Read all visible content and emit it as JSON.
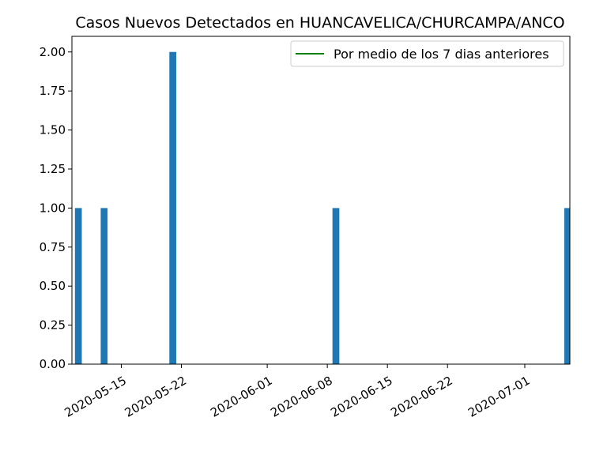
{
  "chart_data": {
    "type": "bar",
    "title": "Casos Nuevos Detectados en HUANCAVELICA/CHURCAMPA/ANCO",
    "xlabel": "",
    "ylabel": "",
    "x_type": "date",
    "xlim": [
      "2020-05-10",
      "2020-07-06"
    ],
    "ylim": [
      0,
      2.1
    ],
    "x_ticks": [
      "2020-05-15",
      "2020-05-22",
      "2020-06-01",
      "2020-06-08",
      "2020-06-15",
      "2020-06-22",
      "2020-07-01"
    ],
    "y_ticks": [
      "0.00",
      "0.25",
      "0.50",
      "0.75",
      "1.00",
      "1.25",
      "1.50",
      "1.75",
      "2.00"
    ],
    "bars": [
      {
        "date": "2020-05-10",
        "value": 1
      },
      {
        "date": "2020-05-13",
        "value": 1
      },
      {
        "date": "2020-05-21",
        "value": 2
      },
      {
        "date": "2020-06-09",
        "value": 1
      },
      {
        "date": "2020-07-06",
        "value": 1
      }
    ],
    "bar_color": "#1f77b4",
    "legend": {
      "placement": "top-right",
      "entries": [
        {
          "label": "Por medio de los 7 dias anteriores",
          "color": "#008000",
          "marker": "line"
        }
      ]
    },
    "grid": false
  }
}
